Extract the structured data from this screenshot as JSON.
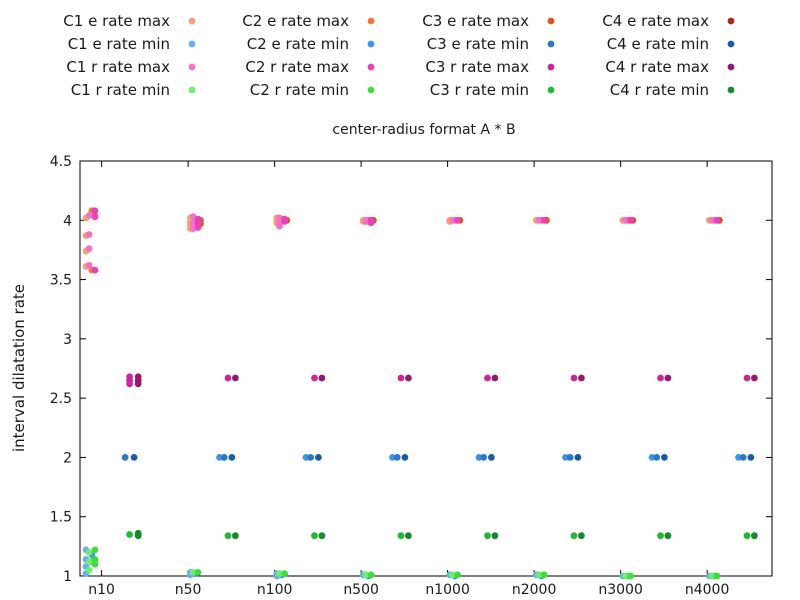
{
  "chart_data": {
    "type": "scatter",
    "title": "center-radius format A * B",
    "xlabel": "",
    "ylabel": "interval dilatation rate",
    "ylim": [
      1,
      4.5
    ],
    "yticks": [
      "1",
      "1.5",
      "2",
      "2.5",
      "3",
      "3.5",
      "4",
      "4.5"
    ],
    "categories": [
      "n10",
      "n50",
      "n100",
      "n500",
      "n1000",
      "n2000",
      "n3000",
      "n4000"
    ],
    "grid": false,
    "legend_position": "top",
    "series": [
      {
        "name": "C1 e rate max",
        "color": "#f4a078",
        "points": [
          {
            "cat": "n10",
            "y": [
              4.02,
              3.87,
              3.74,
              3.61
            ]
          },
          {
            "cat": "n50",
            "y": [
              4.02,
              3.99,
              3.96,
              3.93
            ]
          },
          {
            "cat": "n100",
            "y": [
              4.02,
              4.0,
              3.98
            ]
          },
          {
            "cat": "n500",
            "y": [
              4.0,
              3.99
            ]
          },
          {
            "cat": "n1000",
            "y": [
              4.0,
              3.99
            ]
          },
          {
            "cat": "n2000",
            "y": [
              4.0
            ]
          },
          {
            "cat": "n3000",
            "y": [
              4.0
            ]
          },
          {
            "cat": "n4000",
            "y": [
              4.0
            ]
          }
        ]
      },
      {
        "name": "C2 e rate max",
        "color": "#ef7a40",
        "points": [
          {
            "cat": "n10",
            "y": [
              4.08,
              3.58
            ]
          },
          {
            "cat": "n50",
            "y": [
              4.01,
              3.98,
              3.94
            ]
          },
          {
            "cat": "n100",
            "y": [
              4.01,
              3.99
            ]
          },
          {
            "cat": "n500",
            "y": [
              4.0,
              3.99
            ]
          },
          {
            "cat": "n1000",
            "y": [
              4.0
            ]
          },
          {
            "cat": "n2000",
            "y": [
              4.0
            ]
          },
          {
            "cat": "n3000",
            "y": [
              4.0
            ]
          },
          {
            "cat": "n4000",
            "y": [
              4.0
            ]
          }
        ]
      },
      {
        "name": "C3 e rate max",
        "color": "#d9551f",
        "points": [
          {
            "cat": "n10",
            "y": []
          },
          {
            "cat": "n50",
            "y": [
              4.0,
              3.97
            ]
          },
          {
            "cat": "n100",
            "y": [
              4.0
            ]
          },
          {
            "cat": "n500",
            "y": [
              4.0
            ]
          },
          {
            "cat": "n1000",
            "y": [
              4.0
            ]
          },
          {
            "cat": "n2000",
            "y": [
              4.0
            ]
          },
          {
            "cat": "n3000",
            "y": [
              4.0
            ]
          },
          {
            "cat": "n4000",
            "y": [
              4.0
            ]
          }
        ]
      },
      {
        "name": "C4 e rate max",
        "color": "#9a2e16",
        "points": [
          {
            "cat": "n10",
            "y": []
          },
          {
            "cat": "n50",
            "y": []
          },
          {
            "cat": "n100",
            "y": []
          },
          {
            "cat": "n500",
            "y": []
          },
          {
            "cat": "n1000",
            "y": []
          },
          {
            "cat": "n2000",
            "y": []
          },
          {
            "cat": "n3000",
            "y": []
          },
          {
            "cat": "n4000",
            "y": []
          }
        ]
      },
      {
        "name": "C1 e rate min",
        "color": "#6aaeea",
        "points": [
          {
            "cat": "n10",
            "y": [
              1.22,
              1.14,
              1.08,
              1.02
            ]
          },
          {
            "cat": "n50",
            "y": [
              1.03,
              1.01
            ]
          },
          {
            "cat": "n100",
            "y": [
              1.02,
              1.0
            ]
          },
          {
            "cat": "n500",
            "y": [
              1.01
            ]
          },
          {
            "cat": "n1000",
            "y": [
              1.01
            ]
          },
          {
            "cat": "n2000",
            "y": [
              1.01
            ]
          },
          {
            "cat": "n3000",
            "y": [
              1.0
            ]
          },
          {
            "cat": "n4000",
            "y": [
              1.0
            ]
          }
        ]
      },
      {
        "name": "C2 e rate min",
        "color": "#3f93e0",
        "points": [
          {
            "cat": "n10",
            "y": [
              1.18,
              1.12
            ]
          },
          {
            "cat": "n50",
            "y": [
              2.0,
              1.02
            ]
          },
          {
            "cat": "n100",
            "y": [
              2.0,
              1.01
            ]
          },
          {
            "cat": "n500",
            "y": [
              2.0,
              1.0
            ]
          },
          {
            "cat": "n1000",
            "y": [
              2.0,
              1.0
            ]
          },
          {
            "cat": "n2000",
            "y": [
              2.0,
              1.0
            ]
          },
          {
            "cat": "n3000",
            "y": [
              2.0,
              1.0
            ]
          },
          {
            "cat": "n4000",
            "y": [
              2.0,
              1.0
            ]
          }
        ]
      },
      {
        "name": "C3 e rate min",
        "color": "#2a78c6",
        "points": [
          {
            "cat": "n10",
            "y": [
              2.0
            ]
          },
          {
            "cat": "n50",
            "y": [
              2.0
            ]
          },
          {
            "cat": "n100",
            "y": [
              2.0
            ]
          },
          {
            "cat": "n500",
            "y": [
              2.0
            ]
          },
          {
            "cat": "n1000",
            "y": [
              2.0
            ]
          },
          {
            "cat": "n2000",
            "y": [
              2.0
            ]
          },
          {
            "cat": "n3000",
            "y": [
              2.0
            ]
          },
          {
            "cat": "n4000",
            "y": [
              2.0
            ]
          }
        ]
      },
      {
        "name": "C4 e rate min",
        "color": "#1c5aa0",
        "points": [
          {
            "cat": "n10",
            "y": [
              2.0
            ]
          },
          {
            "cat": "n50",
            "y": [
              2.0
            ]
          },
          {
            "cat": "n100",
            "y": [
              2.0
            ]
          },
          {
            "cat": "n500",
            "y": [
              2.0
            ]
          },
          {
            "cat": "n1000",
            "y": [
              2.0
            ]
          },
          {
            "cat": "n2000",
            "y": [
              2.0
            ]
          },
          {
            "cat": "n3000",
            "y": [
              2.0
            ]
          },
          {
            "cat": "n4000",
            "y": [
              2.0
            ]
          }
        ]
      },
      {
        "name": "C1 r rate max",
        "color": "#f272c6",
        "points": [
          {
            "cat": "n10",
            "y": [
              4.04,
              3.88,
              3.76,
              3.62
            ]
          },
          {
            "cat": "n50",
            "y": [
              4.03,
              3.97,
              3.93
            ]
          },
          {
            "cat": "n100",
            "y": [
              4.02,
              3.98,
              3.95
            ]
          },
          {
            "cat": "n500",
            "y": [
              4.0,
              3.99
            ]
          },
          {
            "cat": "n1000",
            "y": [
              4.0
            ]
          },
          {
            "cat": "n2000",
            "y": [
              4.0
            ]
          },
          {
            "cat": "n3000",
            "y": [
              4.0
            ]
          },
          {
            "cat": "n4000",
            "y": [
              4.0
            ]
          }
        ]
      },
      {
        "name": "C2 r rate max",
        "color": "#e743b8",
        "points": [
          {
            "cat": "n10",
            "y": [
              4.08,
              4.03,
              3.58
            ]
          },
          {
            "cat": "n50",
            "y": [
              4.01,
              3.98,
              3.94
            ]
          },
          {
            "cat": "n100",
            "y": [
              4.01,
              3.99
            ]
          },
          {
            "cat": "n500",
            "y": [
              4.0,
              3.98
            ]
          },
          {
            "cat": "n1000",
            "y": [
              4.0
            ]
          },
          {
            "cat": "n2000",
            "y": [
              4.0
            ]
          },
          {
            "cat": "n3000",
            "y": [
              4.0
            ]
          },
          {
            "cat": "n4000",
            "y": [
              4.0
            ]
          }
        ]
      },
      {
        "name": "C3 r rate max",
        "color": "#c9279c",
        "points": [
          {
            "cat": "n10",
            "y": [
              2.68,
              2.65,
              2.62
            ]
          },
          {
            "cat": "n50",
            "y": [
              2.67
            ]
          },
          {
            "cat": "n100",
            "y": [
              2.67
            ]
          },
          {
            "cat": "n500",
            "y": [
              2.67
            ]
          },
          {
            "cat": "n1000",
            "y": [
              2.67
            ]
          },
          {
            "cat": "n2000",
            "y": [
              2.67
            ]
          },
          {
            "cat": "n3000",
            "y": [
              2.67
            ]
          },
          {
            "cat": "n4000",
            "y": [
              2.67
            ]
          }
        ]
      },
      {
        "name": "C4 r rate max",
        "color": "#921a6f",
        "points": [
          {
            "cat": "n10",
            "y": [
              2.68,
              2.65,
              2.62
            ]
          },
          {
            "cat": "n50",
            "y": [
              2.67
            ]
          },
          {
            "cat": "n100",
            "y": [
              2.67
            ]
          },
          {
            "cat": "n500",
            "y": [
              2.67
            ]
          },
          {
            "cat": "n1000",
            "y": [
              2.67
            ]
          },
          {
            "cat": "n2000",
            "y": [
              2.67
            ]
          },
          {
            "cat": "n3000",
            "y": [
              2.67
            ]
          },
          {
            "cat": "n4000",
            "y": [
              2.67
            ]
          }
        ]
      },
      {
        "name": "C1 r rate min",
        "color": "#6cf06c",
        "points": [
          {
            "cat": "n10",
            "y": [
              1.2,
              1.12,
              1.05
            ]
          },
          {
            "cat": "n50",
            "y": [
              1.03
            ]
          },
          {
            "cat": "n100",
            "y": [
              1.02
            ]
          },
          {
            "cat": "n500",
            "y": [
              1.01
            ]
          },
          {
            "cat": "n1000",
            "y": [
              1.01
            ]
          },
          {
            "cat": "n2000",
            "y": [
              1.01
            ]
          },
          {
            "cat": "n3000",
            "y": [
              1.0
            ]
          },
          {
            "cat": "n4000",
            "y": [
              1.0
            ]
          }
        ]
      },
      {
        "name": "C2 r rate min",
        "color": "#3fdc3f",
        "points": [
          {
            "cat": "n10",
            "y": [
              1.22,
              1.14,
              1.1
            ]
          },
          {
            "cat": "n50",
            "y": [
              1.03
            ]
          },
          {
            "cat": "n100",
            "y": [
              1.02
            ]
          },
          {
            "cat": "n500",
            "y": [
              1.01
            ]
          },
          {
            "cat": "n1000",
            "y": [
              1.01
            ]
          },
          {
            "cat": "n2000",
            "y": [
              1.01
            ]
          },
          {
            "cat": "n3000",
            "y": [
              1.0
            ]
          },
          {
            "cat": "n4000",
            "y": [
              1.0
            ]
          }
        ]
      },
      {
        "name": "C3 r rate min",
        "color": "#22b83a",
        "points": [
          {
            "cat": "n10",
            "y": [
              1.35
            ]
          },
          {
            "cat": "n50",
            "y": [
              1.34
            ]
          },
          {
            "cat": "n100",
            "y": [
              1.34
            ]
          },
          {
            "cat": "n500",
            "y": [
              1.34
            ]
          },
          {
            "cat": "n1000",
            "y": [
              1.34
            ]
          },
          {
            "cat": "n2000",
            "y": [
              1.34
            ]
          },
          {
            "cat": "n3000",
            "y": [
              1.34
            ]
          },
          {
            "cat": "n4000",
            "y": [
              1.34
            ]
          }
        ]
      },
      {
        "name": "C4 r rate min",
        "color": "#168a2c",
        "points": [
          {
            "cat": "n10",
            "y": [
              1.36,
              1.34
            ]
          },
          {
            "cat": "n50",
            "y": [
              1.34
            ]
          },
          {
            "cat": "n100",
            "y": [
              1.34
            ]
          },
          {
            "cat": "n500",
            "y": [
              1.34
            ]
          },
          {
            "cat": "n1000",
            "y": [
              1.34
            ]
          },
          {
            "cat": "n2000",
            "y": [
              1.34
            ]
          },
          {
            "cat": "n3000",
            "y": [
              1.34
            ]
          },
          {
            "cat": "n4000",
            "y": [
              1.34
            ]
          }
        ]
      }
    ]
  }
}
